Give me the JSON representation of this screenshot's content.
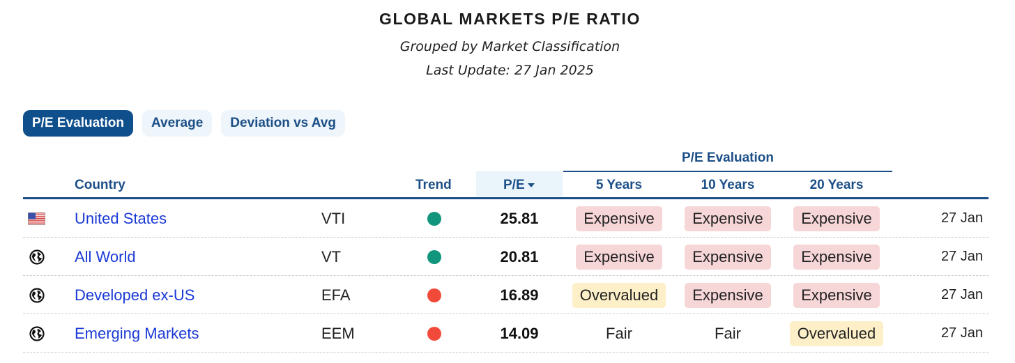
{
  "header": {
    "title": "GLOBAL MARKETS P/E RATIO",
    "subtitle": "Grouped by Market Classification",
    "last_update": "Last Update: 27 Jan 2025"
  },
  "tabs": [
    {
      "label": "P/E Evaluation",
      "active": true
    },
    {
      "label": "Average",
      "active": false
    },
    {
      "label": "Deviation vs Avg",
      "active": false
    }
  ],
  "table": {
    "group_header": "P/E Evaluation",
    "columns": {
      "country": "Country",
      "trend": "Trend",
      "pe": "P/E",
      "y5": "5 Years",
      "y10": "10 Years",
      "y20": "20 Years"
    },
    "rows": [
      {
        "flag": "us-flag-icon",
        "country": "United States",
        "ticker": "VTI",
        "trend": "up",
        "pe": "25.81",
        "y5": "Expensive",
        "y10": "Expensive",
        "y20": "Expensive",
        "date": "27 Jan"
      },
      {
        "flag": "globe-icon",
        "country": "All World",
        "ticker": "VT",
        "trend": "up",
        "pe": "20.81",
        "y5": "Expensive",
        "y10": "Expensive",
        "y20": "Expensive",
        "date": "27 Jan"
      },
      {
        "flag": "globe-icon",
        "country": "Developed ex-US",
        "ticker": "EFA",
        "trend": "down",
        "pe": "16.89",
        "y5": "Overvalued",
        "y10": "Expensive",
        "y20": "Expensive",
        "date": "27 Jan"
      },
      {
        "flag": "globe-icon",
        "country": "Emerging Markets",
        "ticker": "EEM",
        "trend": "down",
        "pe": "14.09",
        "y5": "Fair",
        "y10": "Fair",
        "y20": "Overvalued",
        "date": "27 Jan"
      }
    ]
  },
  "colors": {
    "accent": "#1c4f87",
    "trend_up": "#11957c",
    "trend_down": "#f24a3a",
    "expensive_bg": "#f7d6d8",
    "overvalued_bg": "#fdf0c8",
    "link": "#1a3ad6"
  }
}
